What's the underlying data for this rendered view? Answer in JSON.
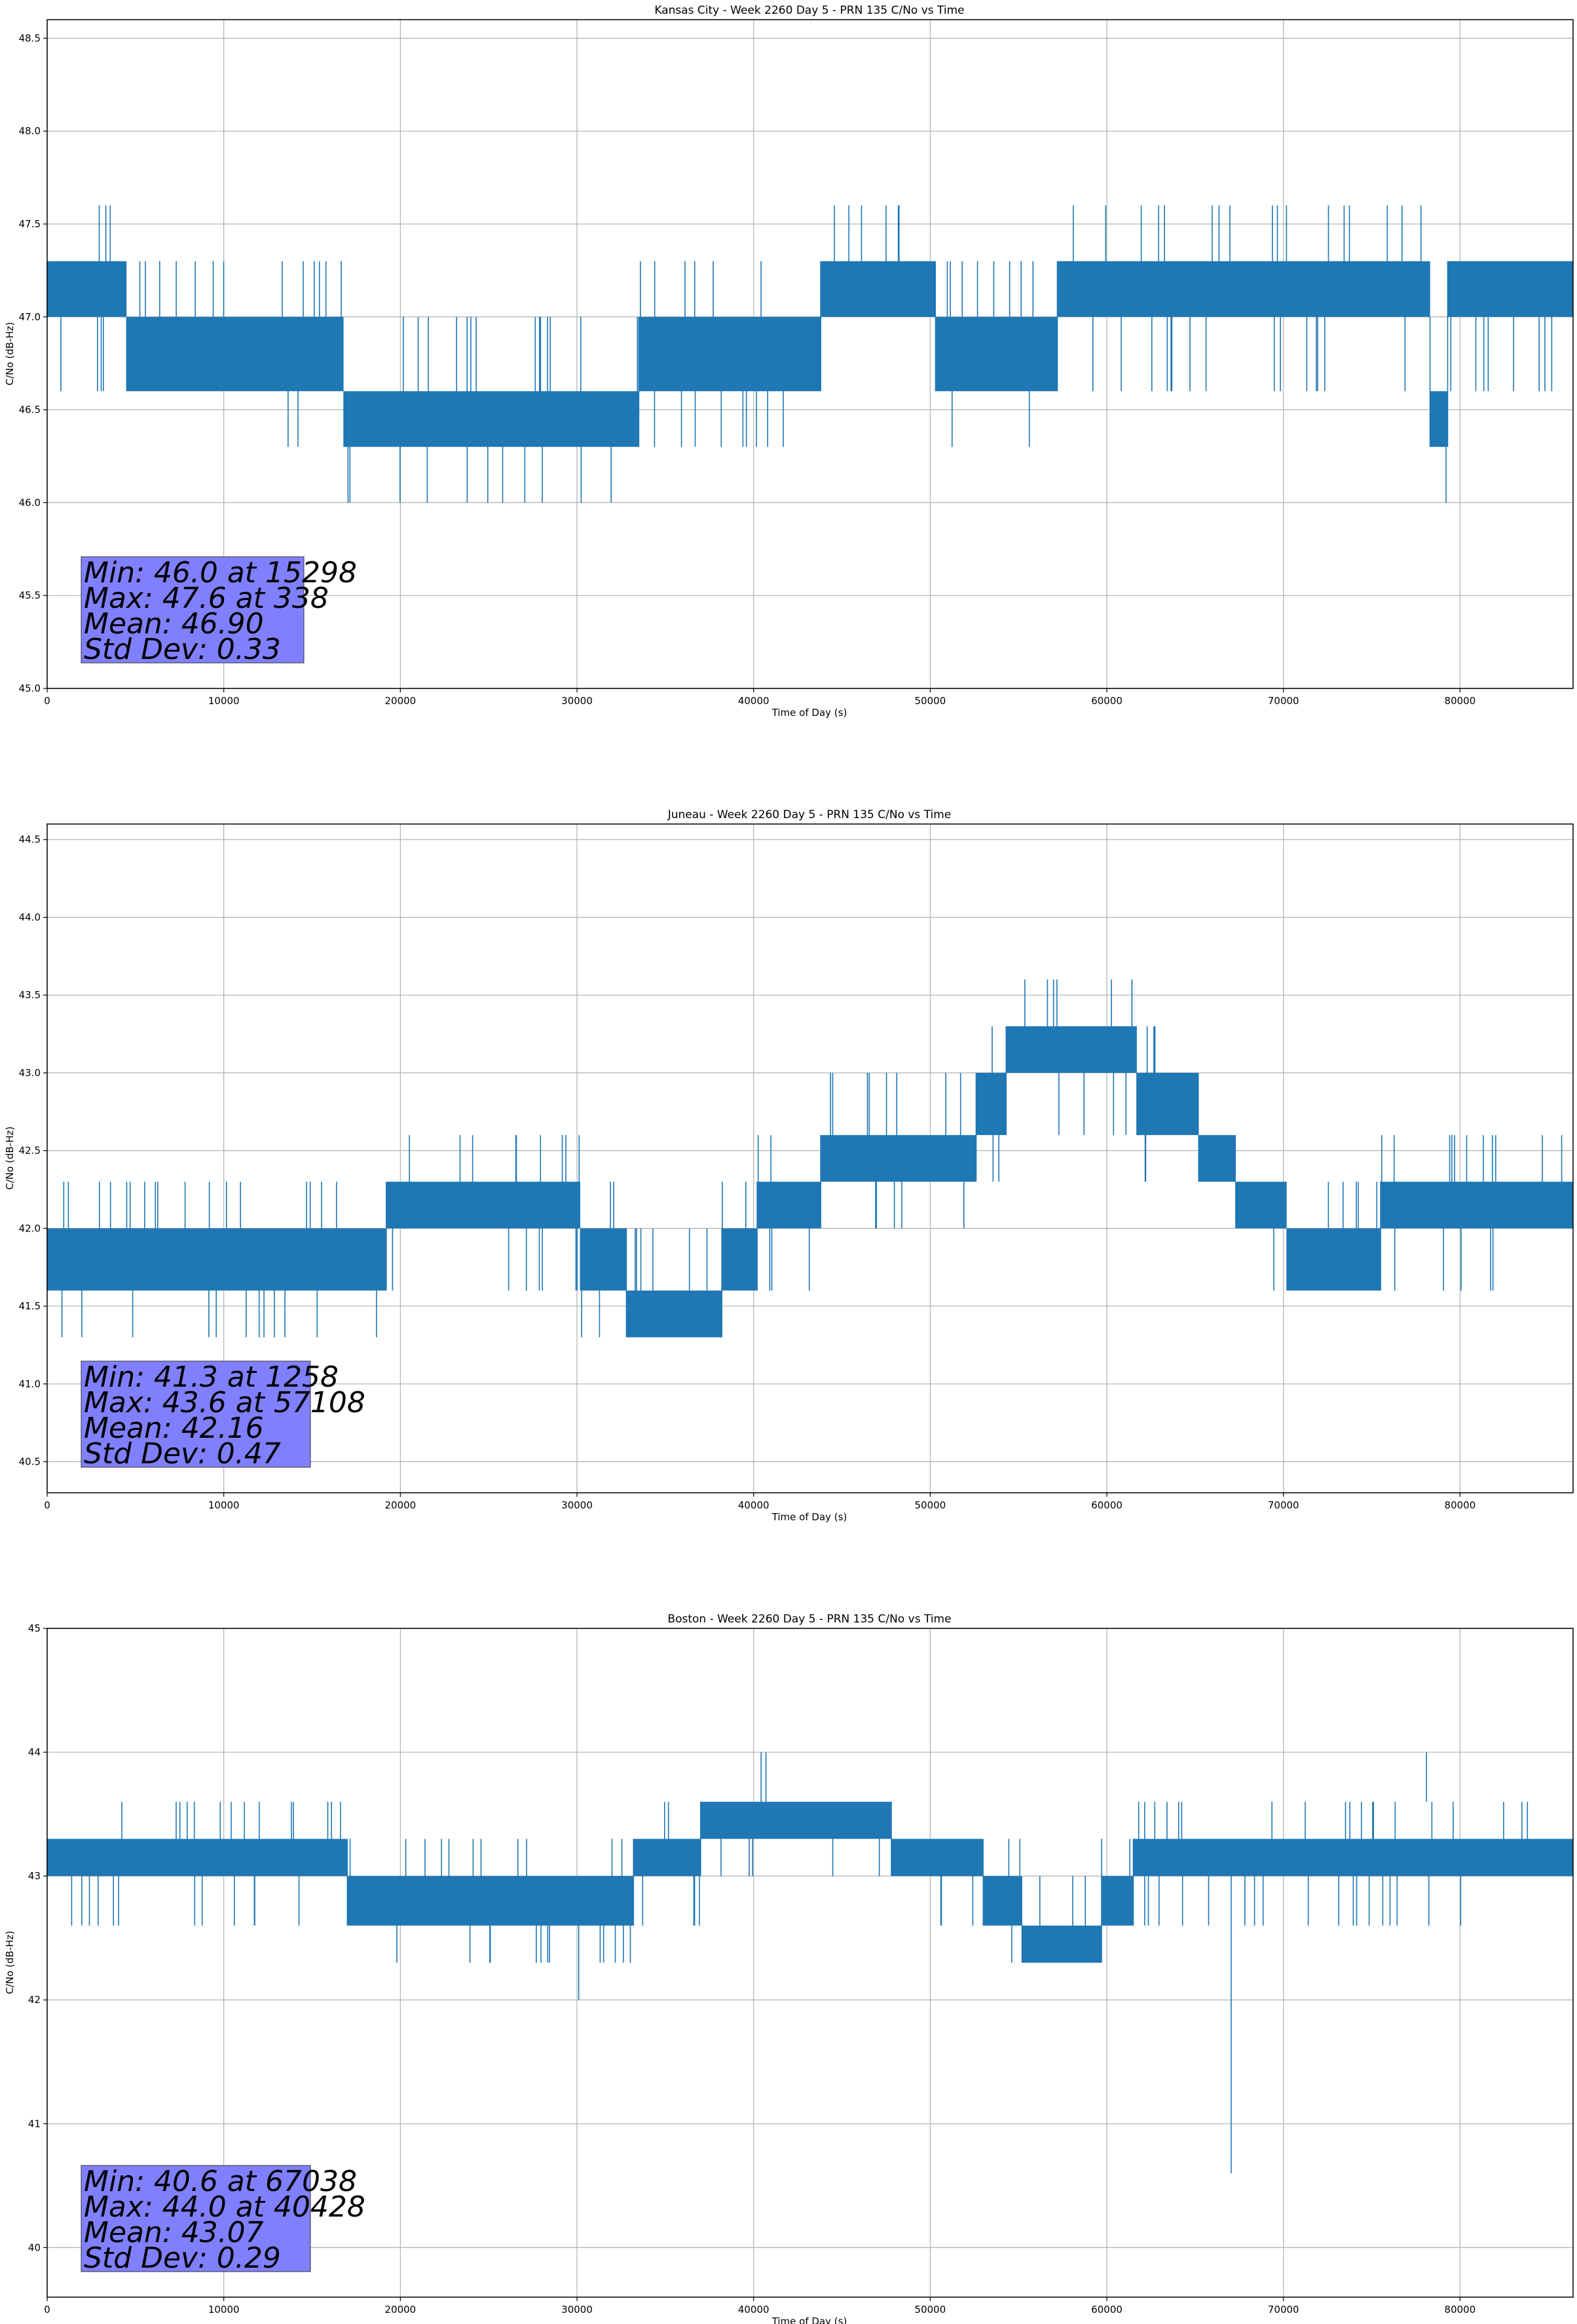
{
  "chart_data": [
    {
      "type": "line",
      "title": "Kansas City - Week 2260 Day 5 - PRN 135 C/No vs Time",
      "xlabel": "Time of Day (s)",
      "ylabel": "C/No (dB-Hz)",
      "xlim": [
        0,
        86400
      ],
      "ylim": [
        45.0,
        48.6
      ],
      "xticks": [
        0,
        10000,
        20000,
        30000,
        40000,
        50000,
        60000,
        70000,
        80000
      ],
      "xtick_labels": [
        "0",
        "10000",
        "20000",
        "30000",
        "40000",
        "50000",
        "60000",
        "70000",
        "80000"
      ],
      "yticks": [
        45.0,
        45.5,
        46.0,
        46.5,
        47.0,
        47.5,
        48.0,
        48.5
      ],
      "ytick_labels": [
        "45.0",
        "45.5",
        "46.0",
        "46.5",
        "47.0",
        "47.5",
        "48.0",
        "48.5"
      ],
      "grid": true,
      "quantization": 0.3,
      "series_color": "#1f77b4",
      "bands": [
        {
          "x0": 0,
          "x1": 4500,
          "lo": 47.0,
          "hi": 47.3,
          "up": 47.6,
          "down": 46.6
        },
        {
          "x0": 4500,
          "x1": 11200,
          "lo": 46.6,
          "hi": 47.0,
          "up": 47.3,
          "down": 46.6
        },
        {
          "x0": 11200,
          "x1": 16800,
          "lo": 46.6,
          "hi": 47.0,
          "up": 47.3,
          "down": 46.3
        },
        {
          "x0": 16800,
          "x1": 33500,
          "lo": 46.3,
          "hi": 46.6,
          "up": 47.0,
          "down": 46.0
        },
        {
          "x0": 33500,
          "x1": 43800,
          "lo": 46.6,
          "hi": 47.0,
          "up": 47.3,
          "down": 46.3
        },
        {
          "x0": 43800,
          "x1": 50300,
          "lo": 47.0,
          "hi": 47.3,
          "up": 47.6,
          "down": 47.0
        },
        {
          "x0": 50300,
          "x1": 57200,
          "lo": 46.6,
          "hi": 47.0,
          "up": 47.3,
          "down": 46.3
        },
        {
          "x0": 57200,
          "x1": 78300,
          "lo": 47.0,
          "hi": 47.3,
          "up": 47.6,
          "down": 46.6
        },
        {
          "x0": 78300,
          "x1": 79300,
          "lo": 46.3,
          "hi": 46.6,
          "up": 46.6,
          "down": 46.0
        },
        {
          "x0": 79300,
          "x1": 86400,
          "lo": 47.0,
          "hi": 47.3,
          "up": 47.3,
          "down": 46.6
        }
      ],
      "stats": {
        "min": "Min: 46.0 at 15298",
        "max": "Max: 47.6 at 338",
        "mean": "Mean: 46.90",
        "std": "Std Dev: 0.33",
        "box_color": "#8080ff"
      }
    },
    {
      "type": "line",
      "title": "Juneau - Week 2260 Day 5 - PRN 135 C/No vs Time",
      "xlabel": "Time of Day (s)",
      "ylabel": "C/No (dB-Hz)",
      "xlim": [
        0,
        86400
      ],
      "ylim": [
        40.3,
        44.6
      ],
      "xticks": [
        0,
        10000,
        20000,
        30000,
        40000,
        50000,
        60000,
        70000,
        80000
      ],
      "xtick_labels": [
        "0",
        "10000",
        "20000",
        "30000",
        "40000",
        "50000",
        "60000",
        "70000",
        "80000"
      ],
      "yticks": [
        40.5,
        41.0,
        41.5,
        42.0,
        42.5,
        43.0,
        43.5,
        44.0,
        44.5
      ],
      "ytick_labels": [
        "40.5",
        "41.0",
        "41.5",
        "42.0",
        "42.5",
        "43.0",
        "43.5",
        "44.0",
        "44.5"
      ],
      "grid": true,
      "quantization": 0.3,
      "series_color": "#1f77b4",
      "bands": [
        {
          "x0": 0,
          "x1": 19200,
          "lo": 41.6,
          "hi": 42.0,
          "up": 42.3,
          "down": 41.3
        },
        {
          "x0": 19200,
          "x1": 30200,
          "lo": 42.0,
          "hi": 42.3,
          "up": 42.6,
          "down": 41.6
        },
        {
          "x0": 30200,
          "x1": 32800,
          "lo": 41.6,
          "hi": 42.0,
          "up": 42.3,
          "down": 41.3
        },
        {
          "x0": 32800,
          "x1": 38200,
          "lo": 41.3,
          "hi": 41.6,
          "up": 42.0,
          "down": 41.3
        },
        {
          "x0": 38200,
          "x1": 40200,
          "lo": 41.6,
          "hi": 42.0,
          "up": 42.3,
          "down": 41.6
        },
        {
          "x0": 40200,
          "x1": 43800,
          "lo": 42.0,
          "hi": 42.3,
          "up": 42.6,
          "down": 41.6
        },
        {
          "x0": 43800,
          "x1": 52600,
          "lo": 42.3,
          "hi": 42.6,
          "up": 43.0,
          "down": 42.0
        },
        {
          "x0": 52600,
          "x1": 54300,
          "lo": 42.6,
          "hi": 43.0,
          "up": 43.3,
          "down": 42.3
        },
        {
          "x0": 54300,
          "x1": 61700,
          "lo": 43.0,
          "hi": 43.3,
          "up": 43.6,
          "down": 42.6
        },
        {
          "x0": 61700,
          "x1": 65200,
          "lo": 42.6,
          "hi": 43.0,
          "up": 43.3,
          "down": 42.3
        },
        {
          "x0": 65200,
          "x1": 67300,
          "lo": 42.3,
          "hi": 42.6,
          "up": 42.6,
          "down": 42.0
        },
        {
          "x0": 67300,
          "x1": 70200,
          "lo": 42.0,
          "hi": 42.3,
          "up": 42.3,
          "down": 41.6
        },
        {
          "x0": 70200,
          "x1": 75500,
          "lo": 41.6,
          "hi": 42.0,
          "up": 42.3,
          "down": 41.6
        },
        {
          "x0": 75500,
          "x1": 86400,
          "lo": 42.0,
          "hi": 42.3,
          "up": 42.6,
          "down": 41.6
        }
      ],
      "stats": {
        "min": "Min: 41.3 at 1258",
        "max": "Max: 43.6 at 57108",
        "mean": "Mean: 42.16",
        "std": "Std Dev: 0.47",
        "box_color": "#8080ff"
      }
    },
    {
      "type": "line",
      "title": "Boston - Week 2260 Day 5 - PRN 135 C/No vs Time",
      "xlabel": "Time of Day (s)",
      "ylabel": "C/No (dB-Hz)",
      "xlim": [
        0,
        86400
      ],
      "ylim": [
        39.6,
        45.0
      ],
      "xticks": [
        0,
        10000,
        20000,
        30000,
        40000,
        50000,
        60000,
        70000,
        80000
      ],
      "xtick_labels": [
        "0",
        "10000",
        "20000",
        "30000",
        "40000",
        "50000",
        "60000",
        "70000",
        "80000"
      ],
      "yticks": [
        40,
        41,
        42,
        43,
        44,
        45
      ],
      "ytick_labels": [
        "40",
        "41",
        "42",
        "43",
        "44",
        "45"
      ],
      "grid": true,
      "quantization": 0.3,
      "series_color": "#1f77b4",
      "bands": [
        {
          "x0": 0,
          "x1": 13200,
          "lo": 43.0,
          "hi": 43.3,
          "up": 43.6,
          "down": 42.6
        },
        {
          "x0": 13200,
          "x1": 17000,
          "lo": 43.0,
          "hi": 43.3,
          "up": 43.6,
          "down": 42.6
        },
        {
          "x0": 17000,
          "x1": 33200,
          "lo": 42.6,
          "hi": 43.0,
          "up": 43.3,
          "down": 42.3
        },
        {
          "x0": 33200,
          "x1": 37000,
          "lo": 43.0,
          "hi": 43.3,
          "up": 43.6,
          "down": 42.6
        },
        {
          "x0": 37000,
          "x1": 47800,
          "lo": 43.3,
          "hi": 43.6,
          "up": 43.6,
          "down": 43.0
        },
        {
          "x0": 47800,
          "x1": 53000,
          "lo": 43.0,
          "hi": 43.3,
          "up": 43.3,
          "down": 42.6
        },
        {
          "x0": 53000,
          "x1": 55200,
          "lo": 42.6,
          "hi": 43.0,
          "up": 43.3,
          "down": 42.3
        },
        {
          "x0": 55200,
          "x1": 59700,
          "lo": 42.3,
          "hi": 42.6,
          "up": 43.0,
          "down": 42.3
        },
        {
          "x0": 59700,
          "x1": 61500,
          "lo": 42.6,
          "hi": 43.0,
          "up": 43.3,
          "down": 42.6
        },
        {
          "x0": 61500,
          "x1": 86400,
          "lo": 43.0,
          "hi": 43.3,
          "up": 43.6,
          "down": 42.6
        }
      ],
      "spikes": [
        {
          "x": 40428,
          "y0": 43.6,
          "y1": 44.0
        },
        {
          "x": 40700,
          "y0": 43.6,
          "y1": 44.0
        },
        {
          "x": 78100,
          "y0": 43.6,
          "y1": 44.0
        },
        {
          "x": 30100,
          "y0": 42.6,
          "y1": 42.0
        },
        {
          "x": 67038,
          "y0": 43.0,
          "y1": 40.6
        }
      ],
      "stats": {
        "min": "Min: 40.6 at 67038",
        "max": "Max: 44.0 at 40428",
        "mean": "Mean: 43.07",
        "std": "Std Dev: 0.29",
        "box_color": "#8080ff"
      }
    }
  ]
}
